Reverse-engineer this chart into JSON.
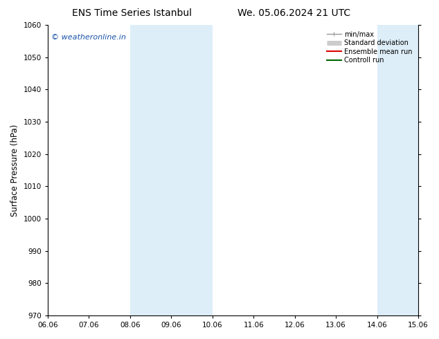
{
  "title_left": "ENS Time Series Istanbul",
  "title_right": "We. 05.06.2024 21 UTC",
  "ylabel": "Surface Pressure (hPa)",
  "xlim": [
    0,
    9
  ],
  "ylim": [
    970,
    1060
  ],
  "yticks": [
    970,
    980,
    990,
    1000,
    1010,
    1020,
    1030,
    1040,
    1050,
    1060
  ],
  "xtick_labels": [
    "06.06",
    "07.06",
    "08.06",
    "09.06",
    "10.06",
    "11.06",
    "12.06",
    "13.06",
    "14.06",
    "15.06"
  ],
  "xtick_positions": [
    0,
    1,
    2,
    3,
    4,
    5,
    6,
    7,
    8,
    9
  ],
  "shaded_regions": [
    {
      "xmin": 2,
      "xmax": 4,
      "color": "#ddeef8"
    },
    {
      "xmin": 8,
      "xmax": 9,
      "color": "#ddeef8"
    }
  ],
  "watermark_text": "© weatheronline.in",
  "watermark_color": "#1a52a8",
  "background_color": "#ffffff",
  "legend_entries": [
    {
      "label": "min/max",
      "color": "#999999",
      "lw": 1.0
    },
    {
      "label": "Standard deviation",
      "color": "#cccccc",
      "lw": 5
    },
    {
      "label": "Ensemble mean run",
      "color": "#dd0000",
      "lw": 1.5
    },
    {
      "label": "Controll run",
      "color": "#006600",
      "lw": 1.5
    }
  ],
  "title_fontsize": 10,
  "tick_fontsize": 7.5,
  "ylabel_fontsize": 8.5,
  "watermark_fontsize": 8,
  "legend_fontsize": 7
}
